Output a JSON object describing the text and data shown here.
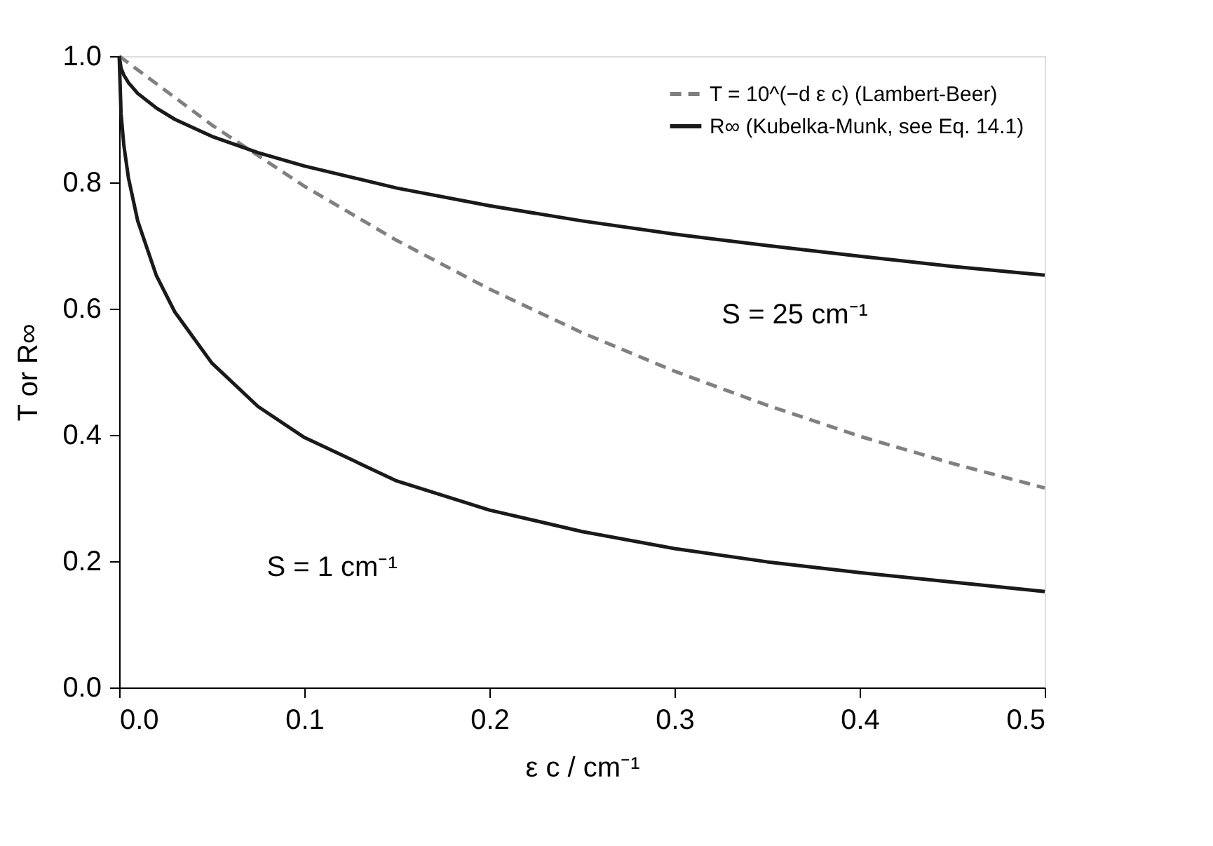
{
  "chart_data": {
    "type": "line",
    "xlabel": "ε c / cm⁻¹",
    "ylabel": "T or R∞",
    "xlim": [
      0,
      0.5
    ],
    "xticks": [
      {
        "value": 0,
        "label": "0.0"
      },
      0.1,
      0.2,
      0.3,
      0.4,
      0.5
    ],
    "ylim": [
      0,
      1
    ],
    "yticks": [
      {
        "value": 0,
        "label": "0.0"
      },
      0.2,
      0.4,
      0.6,
      0.8,
      {
        "value": 1,
        "label": "1.0"
      }
    ],
    "grid": false,
    "legend": "top right",
    "marker": "none",
    "series": [
      {
        "name": "T = 10^(−d ε c) (Lambert-Beer)",
        "color": "#808080",
        "line_style": "dashed",
        "x": [
          0,
          0.05,
          0.1,
          0.15,
          0.2,
          0.25,
          0.3,
          0.35,
          0.4,
          0.45,
          0.5
        ],
        "values": [
          1,
          0.891,
          0.794,
          0.708,
          0.631,
          0.562,
          0.501,
          0.447,
          0.398,
          0.355,
          0.316
        ]
      },
      {
        "name": "R∞ (Kubelka-Munk, see Eq. 14.1)",
        "color": "#1a1a1a",
        "line_style": "solid",
        "x": [
          0,
          0.001,
          0.0025,
          0.005,
          0.01,
          0.02,
          0.03,
          0.05,
          0.075,
          0.1,
          0.15,
          0.2,
          0.25,
          0.3,
          0.35,
          0.4,
          0.45,
          0.5
        ],
        "values": [
          1,
          0.981,
          0.97,
          0.958,
          0.941,
          0.918,
          0.9,
          0.873,
          0.847,
          0.826,
          0.791,
          0.763,
          0.739,
          0.718,
          0.7,
          0.683,
          0.667,
          0.653
        ]
      },
      {
        "color": "#1a1a1a",
        "line_style": "solid",
        "x": [
          0,
          0.001,
          0.0025,
          0.005,
          0.01,
          0.02,
          0.03,
          0.05,
          0.075,
          0.1,
          0.15,
          0.2,
          0.25,
          0.3,
          0.35,
          0.4,
          0.45,
          0.5
        ],
        "values": [
          1,
          0.909,
          0.859,
          0.807,
          0.739,
          0.653,
          0.595,
          0.514,
          0.445,
          0.396,
          0.327,
          0.281,
          0.247,
          0.22,
          0.199,
          0.182,
          0.167,
          0.152
        ]
      }
    ],
    "annotations": [
      "S = 25 cm⁻¹",
      "S = 1 cm⁻¹"
    ]
  }
}
